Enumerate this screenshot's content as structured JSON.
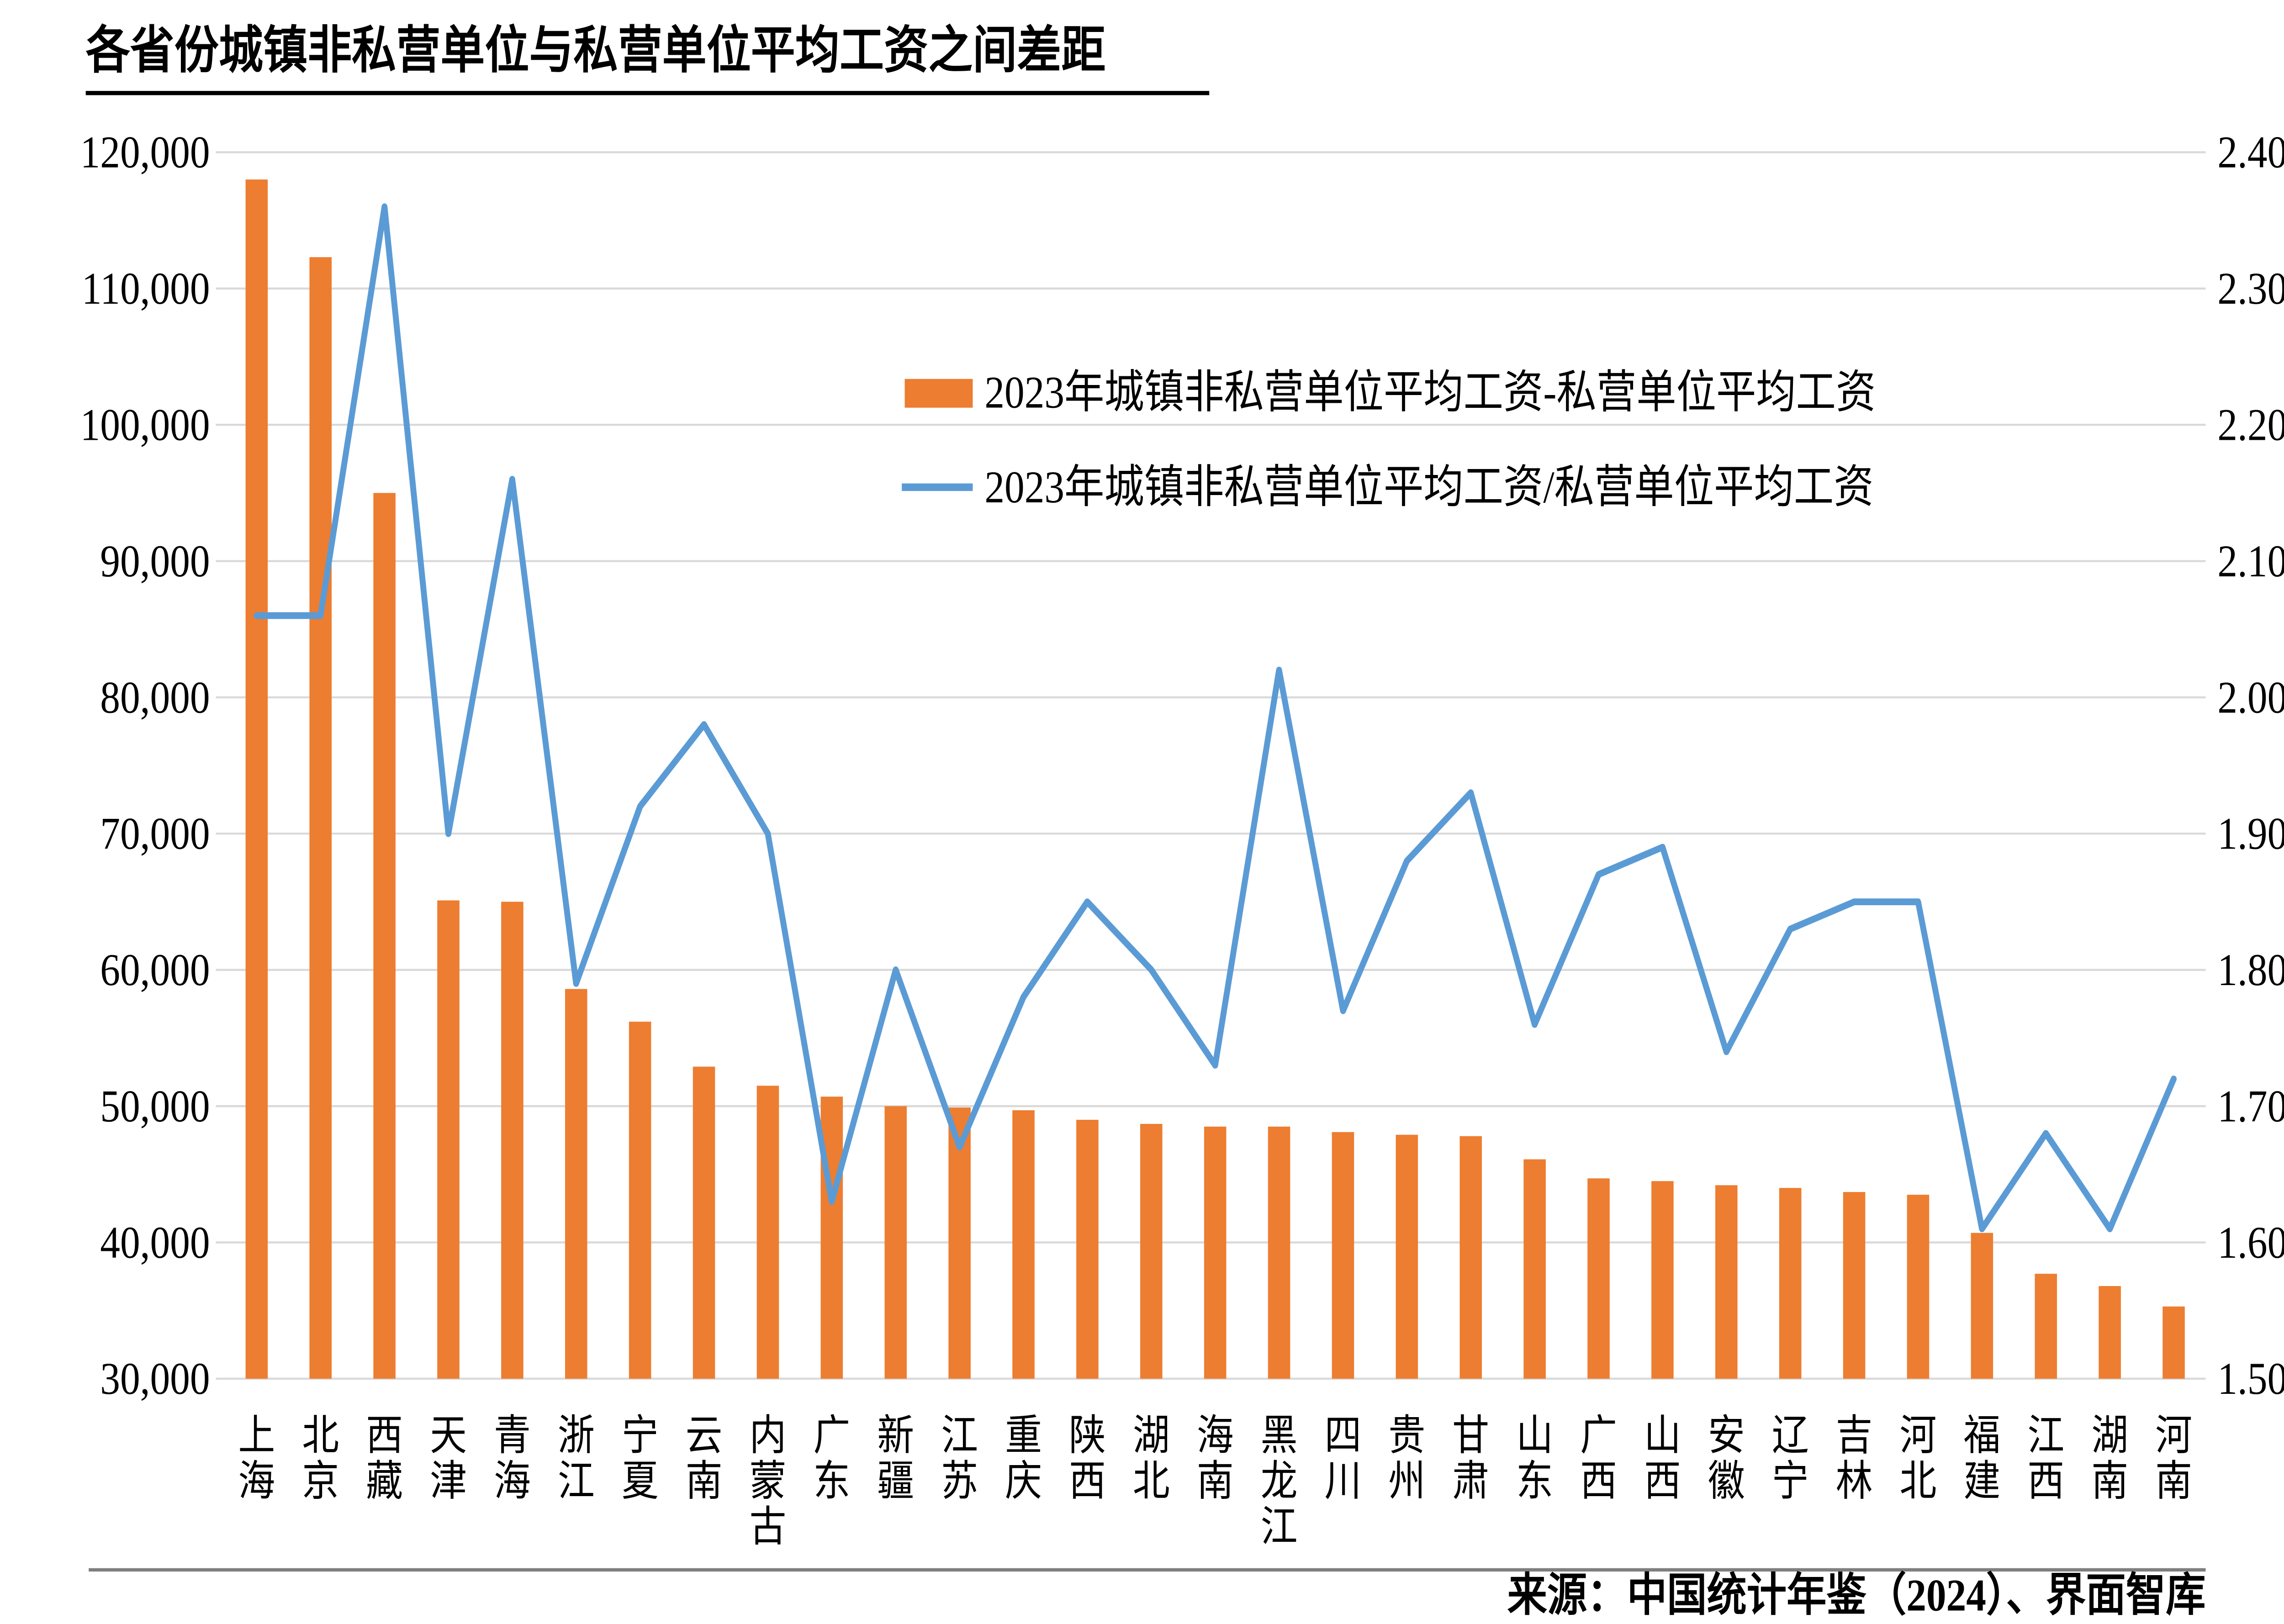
{
  "title": "各省份城镇非私营单位与私营单位平均工资之间差距",
  "source": "来源：中国统计年鉴（2024）、界面智库",
  "chart_data": {
    "type": "bar",
    "subtype": "bar+line combo, dual y-axis",
    "title": "各省份城镇非私营单位与私营单位平均工资之间差距",
    "categories": [
      "上海",
      "北京",
      "西藏",
      "天津",
      "青海",
      "浙江",
      "宁夏",
      "云南",
      "内蒙古",
      "广东",
      "新疆",
      "江苏",
      "重庆",
      "陕西",
      "湖北",
      "海南",
      "黑龙江",
      "四川",
      "贵州",
      "甘肃",
      "山东",
      "广西",
      "山西",
      "安徽",
      "辽宁",
      "吉林",
      "河北",
      "福建",
      "江西",
      "湖南",
      "河南"
    ],
    "series": [
      {
        "name": "2023年城镇非私营单位平均工资-私营单位平均工资",
        "type": "bar",
        "axis": "left",
        "color": "#ED7D31",
        "values": [
          118000,
          112300,
          95000,
          65100,
          65000,
          58600,
          56200,
          52900,
          51500,
          50700,
          50000,
          49900,
          49700,
          49000,
          48700,
          48500,
          48500,
          48100,
          47900,
          47800,
          46100,
          44700,
          44500,
          44200,
          44000,
          43700,
          43500,
          40700,
          37700,
          36800,
          35300
        ]
      },
      {
        "name": "2023年城镇非私营单位平均工资/私营单位平均工资",
        "type": "line",
        "axis": "right",
        "color": "#5B9BD5",
        "values": [
          2.06,
          2.06,
          2.36,
          1.9,
          2.16,
          1.79,
          1.92,
          1.98,
          1.9,
          1.63,
          1.8,
          1.67,
          1.78,
          1.85,
          1.8,
          1.73,
          2.02,
          1.77,
          1.88,
          1.93,
          1.76,
          1.87,
          1.89,
          1.74,
          1.83,
          1.85,
          1.85,
          1.61,
          1.68,
          1.61,
          1.72
        ]
      }
    ],
    "left_axis": {
      "min": 30000,
      "max": 120000,
      "step": 10000,
      "tick_labels": [
        "30,000",
        "40,000",
        "50,000",
        "60,000",
        "70,000",
        "80,000",
        "90,000",
        "100,000",
        "110,000",
        "120,000"
      ]
    },
    "right_axis": {
      "min": 1.5,
      "max": 2.4,
      "step": 0.1,
      "tick_labels": [
        "1.50",
        "1.60",
        "1.70",
        "1.80",
        "1.90",
        "2.00",
        "2.10",
        "2.20",
        "2.30",
        "2.40"
      ]
    },
    "grid": true,
    "grid_color": "#D9D9D9",
    "legend_position": "upper-center"
  }
}
